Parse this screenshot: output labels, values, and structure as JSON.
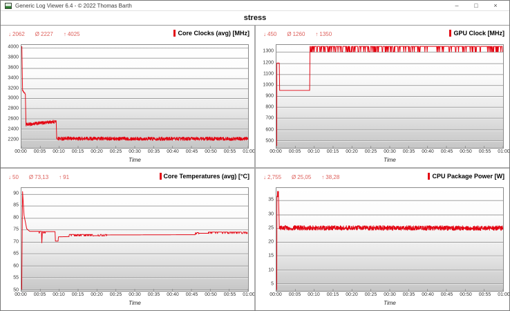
{
  "window": {
    "title": "Generic Log Viewer 6.4 - © 2022 Thomas Barth",
    "minimize": "–",
    "maximize": "□",
    "close": "×"
  },
  "header": {
    "title": "stress"
  },
  "glyphs": {
    "min": "↓",
    "avg": "Ø",
    "max": "↑"
  },
  "colors": {
    "line_red": "#e30613",
    "stats_red": "#dd5f5a",
    "accent_red": "#e30613",
    "grid_line": "#9c9c9c",
    "grid_highlight": "#ffffff",
    "plot_border": "#8a8a8a",
    "divider": "#a9a9a9"
  },
  "chart_data": [
    {
      "id": "core-clocks",
      "type": "line",
      "title": "Core Clocks (avg) [MHz]",
      "stats_display": {
        "min": "2062",
        "avg": "2227",
        "max": "4025"
      },
      "xlabel": "Time",
      "x_tick_minutes": [
        0,
        5,
        10,
        15,
        20,
        25,
        30,
        35,
        40,
        45,
        50,
        55,
        60
      ],
      "x_tick_labels": [
        "00:00",
        "00:05",
        "00:10",
        "00:15",
        "00:20",
        "00:25",
        "00:30",
        "00:35",
        "00:40",
        "00:45",
        "00:50",
        "00:55",
        "01:00"
      ],
      "y_ticks": [
        2200,
        2400,
        2600,
        2800,
        3000,
        3200,
        3400,
        3600,
        3800,
        4000
      ],
      "y_tick_labels": [
        "2200",
        "2400",
        "2600",
        "2800",
        "3000",
        "3200",
        "3400",
        "3600",
        "3800",
        "4000"
      ],
      "ylim": [
        2020,
        4060
      ],
      "xlim_minutes": [
        0,
        60
      ],
      "grid": true,
      "legend": false,
      "series": {
        "name": "Core Clocks (avg)",
        "color": "#e30613",
        "segments": [
          {
            "t": [
              0,
              0.12
            ],
            "v": [
              4025,
              4025
            ]
          },
          {
            "t": [
              0.12,
              0.3
            ],
            "v": [
              4025,
              3170
            ]
          },
          {
            "t": [
              0.3,
              1.05
            ],
            "v": [
              3160,
              3085
            ],
            "noise": 12
          },
          {
            "t": [
              1.05,
              1.2
            ],
            "v": [
              3085,
              2505
            ]
          },
          {
            "t": [
              1.2,
              9.2
            ],
            "v": [
              2480,
              2545
            ],
            "noise": 33
          },
          {
            "t": [
              9.2,
              9.35
            ],
            "v": [
              2545,
              2205
            ]
          },
          {
            "t": [
              9.35,
              60
            ],
            "v": [
              2205,
              2200
            ],
            "noise": 35
          }
        ]
      }
    },
    {
      "id": "gpu-clock",
      "type": "line",
      "title": "GPU Clock [MHz]",
      "stats_display": {
        "min": "450",
        "avg": "1260",
        "max": "1350"
      },
      "xlabel": "Time",
      "x_tick_minutes": [
        0,
        5,
        10,
        15,
        20,
        25,
        30,
        35,
        40,
        45,
        50,
        55,
        60
      ],
      "x_tick_labels": [
        "00:00",
        "00:05",
        "00:10",
        "00:15",
        "00:20",
        "00:25",
        "00:30",
        "00:35",
        "00:40",
        "00:45",
        "00:50",
        "00:55",
        "01:00"
      ],
      "y_ticks": [
        500,
        600,
        700,
        800,
        900,
        1000,
        1100,
        1200,
        1300
      ],
      "y_tick_labels": [
        "500",
        "600",
        "700",
        "800",
        "900",
        "1000",
        "1100",
        "1200",
        "1300"
      ],
      "ylim": [
        430,
        1365
      ],
      "xlim_minutes": [
        0,
        60
      ],
      "grid": true,
      "legend": false,
      "series": {
        "name": "GPU Clock",
        "color": "#e30613",
        "segments": [
          {
            "t": [
              0,
              0.08
            ],
            "v": [
              450,
              450
            ]
          },
          {
            "t": [
              0.08,
              0.12
            ],
            "v": [
              450,
              1200
            ]
          },
          {
            "t": [
              0.12,
              0.75
            ],
            "v": [
              1200,
              1200
            ]
          },
          {
            "t": [
              0.75,
              0.85
            ],
            "v": [
              1200,
              952
            ]
          },
          {
            "t": [
              0.85,
              8.8
            ],
            "v": [
              952,
              952
            ]
          },
          {
            "t": [
              8.8,
              8.9
            ],
            "v": [
              952,
              1352
            ]
          },
          {
            "t": [
              8.9,
              60
            ],
            "mode": "telegraph",
            "hi": 1352,
            "lo": 1302,
            "p_hi": 0.78,
            "step": 0.1
          }
        ]
      }
    },
    {
      "id": "core-temperatures",
      "type": "line",
      "title": "Core Temperatures (avg) [°C]",
      "stats_display": {
        "min": "50",
        "avg": "73,13",
        "max": "91"
      },
      "xlabel": "Time",
      "x_tick_minutes": [
        0,
        5,
        10,
        15,
        20,
        25,
        30,
        35,
        40,
        45,
        50,
        55,
        60
      ],
      "x_tick_labels": [
        "00:00",
        "00:05",
        "00:10",
        "00:15",
        "00:20",
        "00:25",
        "00:30",
        "00:35",
        "00:40",
        "00:45",
        "00:50",
        "00:55",
        "01:00"
      ],
      "y_ticks": [
        50,
        55,
        60,
        65,
        70,
        75,
        80,
        85,
        90
      ],
      "y_tick_labels": [
        "50",
        "55",
        "60",
        "65",
        "70",
        "75",
        "80",
        "85",
        "90"
      ],
      "ylim": [
        49.3,
        92.5
      ],
      "xlim_minutes": [
        0,
        60
      ],
      "grid": true,
      "legend": false,
      "series": {
        "name": "Core Temperatures (avg)",
        "color": "#e30613",
        "segments": [
          {
            "t": [
              0,
              0.08
            ],
            "v": [
              50,
              50
            ]
          },
          {
            "t": [
              0.08,
              0.3
            ],
            "v": [
              50,
              91
            ]
          },
          {
            "t": [
              0.3,
              0.7
            ],
            "v": [
              91,
              81
            ]
          },
          {
            "t": [
              0.7,
              1.4
            ],
            "v": [
              81,
              75.4
            ]
          },
          {
            "t": [
              1.4,
              2.2
            ],
            "v": [
              75.4,
              74.3
            ]
          },
          {
            "t": [
              2.2,
              4.6
            ],
            "v": [
              74.3,
              74.3
            ]
          },
          {
            "t": [
              4.6,
              5.3
            ],
            "mode": "telegraph",
            "hi": 74.3,
            "lo": 73.5,
            "p_hi": 0.6,
            "step": 0.12
          },
          {
            "t": [
              5.3,
              5.4
            ],
            "v": [
              74.3,
              69.5
            ]
          },
          {
            "t": [
              5.4,
              5.55
            ],
            "v": [
              69.5,
              74.2
            ]
          },
          {
            "t": [
              5.55,
              6.6
            ],
            "mode": "telegraph",
            "hi": 74.2,
            "lo": 73.5,
            "p_hi": 0.6,
            "step": 0.12
          },
          {
            "t": [
              6.6,
              8.9
            ],
            "v": [
              74.2,
              74.2
            ]
          },
          {
            "t": [
              8.9,
              9.0
            ],
            "v": [
              74.2,
              70.2
            ]
          },
          {
            "t": [
              9.0,
              9.7
            ],
            "v": [
              70.2,
              70.2
            ]
          },
          {
            "t": [
              9.7,
              9.8
            ],
            "v": [
              70.2,
              72.0
            ]
          },
          {
            "t": [
              9.8,
              12.6
            ],
            "v": [
              72.0,
              72.1
            ]
          },
          {
            "t": [
              12.6,
              19.2
            ],
            "mode": "telegraph",
            "hi": 73.0,
            "lo": 72.4,
            "p_hi": 0.6,
            "step": 0.1
          },
          {
            "t": [
              19.2,
              20.3
            ],
            "v": [
              72.5,
              72.5
            ]
          },
          {
            "t": [
              20.3,
              22.6
            ],
            "mode": "telegraph",
            "hi": 73.0,
            "lo": 72.4,
            "p_hi": 0.5,
            "step": 0.12
          },
          {
            "t": [
              22.6,
              46.0
            ],
            "v": [
              72.8,
              72.9
            ]
          },
          {
            "t": [
              46.0,
              47.0
            ],
            "mode": "telegraph",
            "hi": 73.8,
            "lo": 73.2,
            "p_hi": 0.6,
            "step": 0.12
          },
          {
            "t": [
              47.0,
              49.5
            ],
            "v": [
              73.5,
              73.5
            ]
          },
          {
            "t": [
              49.5,
              60
            ],
            "mode": "telegraph",
            "hi": 74.0,
            "lo": 73.4,
            "p_hi": 0.72,
            "step": 0.1
          }
        ]
      }
    },
    {
      "id": "cpu-package-power",
      "type": "line",
      "title": "CPU Package Power [W]",
      "stats_display": {
        "min": "2,755",
        "avg": "25,05",
        "max": "38,28"
      },
      "xlabel": "Time",
      "x_tick_minutes": [
        0,
        5,
        10,
        15,
        20,
        25,
        30,
        35,
        40,
        45,
        50,
        55,
        60
      ],
      "x_tick_labels": [
        "00:00",
        "00:05",
        "00:10",
        "00:15",
        "00:20",
        "00:25",
        "00:30",
        "00:35",
        "00:40",
        "00:45",
        "00:50",
        "00:55",
        "01:00"
      ],
      "y_ticks": [
        5,
        10,
        15,
        20,
        25,
        30,
        35
      ],
      "y_tick_labels": [
        "5",
        "10",
        "15",
        "20",
        "25",
        "30",
        "35"
      ],
      "ylim": [
        2.3,
        39.5
      ],
      "xlim_minutes": [
        0,
        60
      ],
      "grid": true,
      "legend": false,
      "series": {
        "name": "CPU Package Power",
        "color": "#e30613",
        "segments": [
          {
            "t": [
              0,
              0.08
            ],
            "v": [
              2.755,
              2.755
            ]
          },
          {
            "t": [
              0.08,
              0.15
            ],
            "v": [
              2.755,
              36.5
            ]
          },
          {
            "t": [
              0.15,
              0.55
            ],
            "mode": "telegraph",
            "hi": 38.28,
            "lo": 36.3,
            "p_hi": 0.5,
            "step": 0.05
          },
          {
            "t": [
              0.55,
              0.75
            ],
            "v": [
              37.0,
              25.8
            ]
          },
          {
            "t": [
              0.75,
              60
            ],
            "v": [
              25.1,
              25.0
            ],
            "noise": 0.85
          }
        ]
      }
    }
  ]
}
